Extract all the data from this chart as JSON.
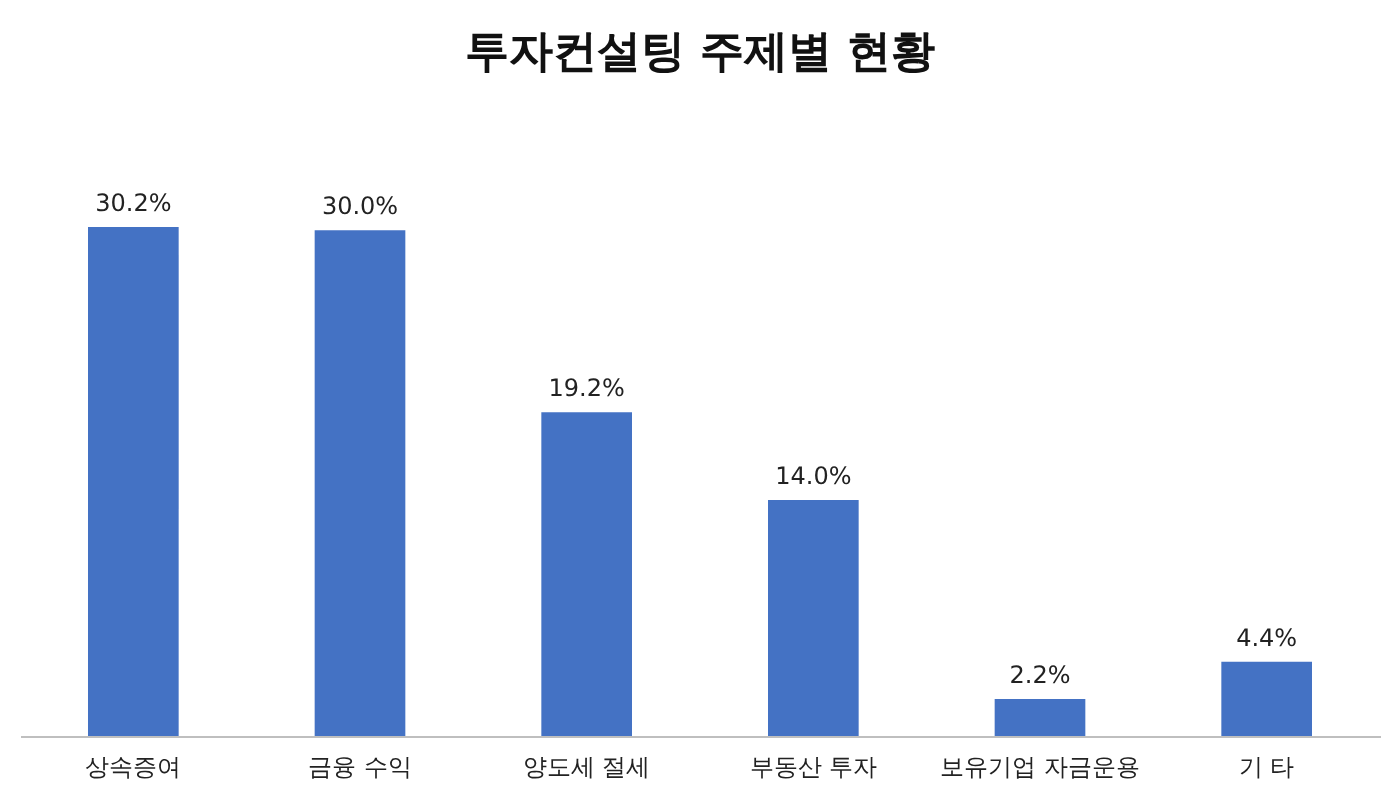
{
  "chart_data": {
    "type": "bar",
    "title": "투자컨설팅 주제별 현황",
    "categories": [
      "상속증여",
      "금융 수익",
      "양도세 절세",
      "부동산 투자",
      "보유기업 자금운용",
      "기 타"
    ],
    "values": [
      30.2,
      30.0,
      19.2,
      14.0,
      2.2,
      4.4
    ],
    "value_labels": [
      "30.2%",
      "30.0%",
      "19.2%",
      "14.0%",
      "2.2%",
      "4.4%"
    ],
    "color": "#4472c4"
  }
}
